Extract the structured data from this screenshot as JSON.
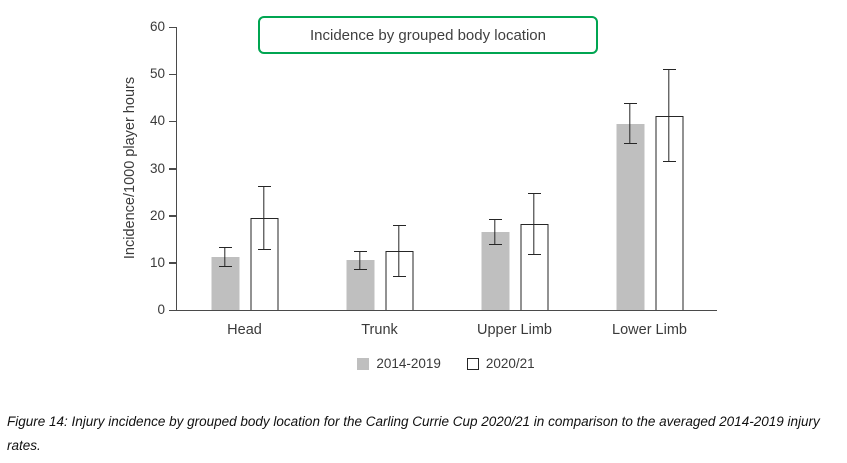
{
  "colors": {
    "title_box_border": "#00a551",
    "axis": "#4a4a4a",
    "text": "#3a3a3a",
    "bar_outline": "#262626",
    "bar_2014_2019": "#bfbfbf",
    "bar_2020_21": "#ffffff"
  },
  "chart_data": {
    "type": "bar",
    "title": "Incidence by grouped body location",
    "xlabel": "",
    "ylabel": "Incidence/1000 player hours",
    "ylim": [
      0,
      60
    ],
    "yticks": [
      0,
      10,
      20,
      30,
      40,
      50,
      60
    ],
    "grid": false,
    "legend_position": "bottom",
    "error_bars": true,
    "categories": [
      "Head",
      "Trunk",
      "Upper Limb",
      "Lower Limb"
    ],
    "series": [
      {
        "name": "2014-2019",
        "fill": "#bfbfbf",
        "values": [
          11.3,
          10.5,
          16.5,
          39.5
        ],
        "error": [
          2.1,
          2.0,
          2.8,
          4.4
        ]
      },
      {
        "name": "2020/21",
        "fill": "#ffffff",
        "values": [
          19.5,
          12.6,
          18.2,
          41.2
        ],
        "error": [
          6.8,
          5.5,
          6.6,
          9.9
        ]
      }
    ]
  },
  "caption": "Figure 14: Injury incidence by grouped body location for the Carling Currie Cup 2020/21 in comparison to the averaged 2014-2019 injury rates."
}
